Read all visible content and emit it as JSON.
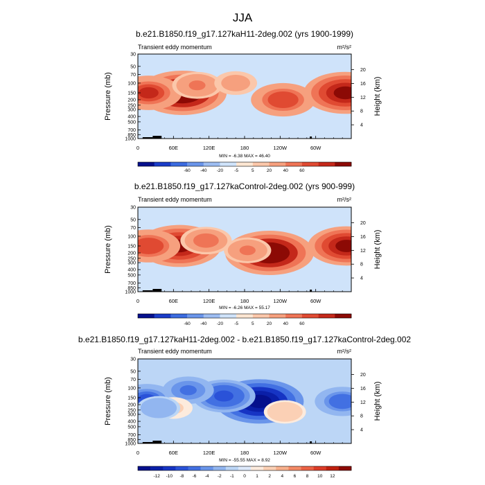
{
  "figure_title": "JJA",
  "chart_data": [
    {
      "type": "heatmap",
      "title": "b.e21.B1850.f19_g17.127kaH11-2deg.002 (yrs 1900-1999)",
      "subtitle": "Transient eddy momentum",
      "units": "m²/s²",
      "xlabel": "",
      "ylabel": "Pressure (mb)",
      "ylabel_right": "Height (km)",
      "x_ticks": [
        "0",
        "60E",
        "120E",
        "180",
        "120W",
        "60W"
      ],
      "y_ticks": [
        "30",
        "50",
        "70",
        "100",
        "150",
        "200",
        "250",
        "300",
        "400",
        "500",
        "700",
        "850",
        "1000"
      ],
      "height_ticks": [
        "20",
        "16",
        "12",
        "8",
        "4"
      ],
      "stats": "MIN = -6.38  MAX = 46.40",
      "colorbar_labels": [
        "-60",
        "-40",
        "-20",
        "-5",
        "5",
        "20",
        "40",
        "60"
      ],
      "colorbar_colors": [
        "#05108c",
        "#1a3cc8",
        "#3b6be0",
        "#6a95ea",
        "#9dbdf2",
        "#cfe3fa",
        "#fde6d2",
        "#fbc7aa",
        "#f6a07e",
        "#ef7456",
        "#e04a32",
        "#c4281a",
        "#8c0a05"
      ],
      "blobs": [
        {
          "lon": 75,
          "p": 150,
          "value": 46.4
        },
        {
          "lon": 18,
          "p": 150,
          "value": 28
        },
        {
          "lon": 100,
          "p": 110,
          "value": 14
        },
        {
          "lon": 245,
          "p": 200,
          "value": 26
        },
        {
          "lon": 350,
          "p": 150,
          "value": 42
        },
        {
          "lon": 165,
          "p": 100,
          "value": 8
        }
      ]
    },
    {
      "type": "heatmap",
      "title": "b.e21.B1850.f19_g17.127kaControl-2deg.002 (yrs 900-999)",
      "subtitle": "Transient eddy momentum",
      "units": "m²/s²",
      "xlabel": "",
      "ylabel": "Pressure (mb)",
      "ylabel_right": "Height (km)",
      "x_ticks": [
        "0",
        "60E",
        "120E",
        "180",
        "120W",
        "60W"
      ],
      "y_ticks": [
        "30",
        "50",
        "70",
        "100",
        "150",
        "200",
        "250",
        "300",
        "400",
        "500",
        "700",
        "850",
        "1000"
      ],
      "height_ticks": [
        "20",
        "16",
        "12",
        "8",
        "4"
      ],
      "stats": "MIN = -6.26  MAX = 55.17",
      "colorbar_labels": [
        "-60",
        "-40",
        "-20",
        "-5",
        "5",
        "20",
        "40",
        "60"
      ],
      "colorbar_colors": [
        "#05108c",
        "#1a3cc8",
        "#3b6be0",
        "#6a95ea",
        "#9dbdf2",
        "#cfe3fa",
        "#fde6d2",
        "#fbc7aa",
        "#f6a07e",
        "#ef7456",
        "#e04a32",
        "#c4281a",
        "#8c0a05"
      ],
      "blobs": [
        {
          "lon": 70,
          "p": 150,
          "value": 50
        },
        {
          "lon": 18,
          "p": 150,
          "value": 30
        },
        {
          "lon": 115,
          "p": 120,
          "value": 18
        },
        {
          "lon": 222,
          "p": 200,
          "value": 55.17
        },
        {
          "lon": 185,
          "p": 180,
          "value": 14
        },
        {
          "lon": 352,
          "p": 150,
          "value": 44
        }
      ]
    },
    {
      "type": "heatmap",
      "title": "b.e21.B1850.f19_g17.127kaH11-2deg.002 - b.e21.B1850.f19_g17.127kaControl-2deg.002",
      "subtitle": "Transient eddy momentum",
      "units": "m²/s²",
      "xlabel": "",
      "ylabel": "Pressure (mb)",
      "ylabel_right": "Height (km)",
      "x_ticks": [
        "0",
        "60E",
        "120E",
        "180",
        "120W",
        "60W"
      ],
      "y_ticks": [
        "30",
        "50",
        "70",
        "100",
        "150",
        "200",
        "250",
        "300",
        "400",
        "500",
        "700",
        "850",
        "1000"
      ],
      "height_ticks": [
        "20",
        "16",
        "12",
        "8",
        "4"
      ],
      "stats": "MIN = -55.55  MAX =  8.92",
      "colorbar_labels": [
        "-12",
        "-10",
        "-8",
        "-6",
        "-4",
        "-2",
        "-1",
        "0",
        "1",
        "2",
        "4",
        "6",
        "8",
        "10",
        "12"
      ],
      "colorbar_colors": [
        "#05108c",
        "#0a1fa8",
        "#1634c4",
        "#2a52d8",
        "#4270e2",
        "#6a95ea",
        "#92b6f0",
        "#bcd6f6",
        "#dde9fb",
        "#fdebdd",
        "#fbd0b5",
        "#f8b08c",
        "#f48a66",
        "#ec6245",
        "#dc3c28",
        "#c0200f",
        "#8c0a05"
      ],
      "blobs": [
        {
          "lon": 205,
          "p": 175,
          "value": -55.55
        },
        {
          "lon": 145,
          "p": 140,
          "value": -30
        },
        {
          "lon": 15,
          "p": 160,
          "value": -25
        },
        {
          "lon": 85,
          "p": 110,
          "value": -18
        },
        {
          "lon": 345,
          "p": 175,
          "value": -22
        },
        {
          "lon": 248,
          "p": 270,
          "value": 8.92
        },
        {
          "lon": 60,
          "p": 230,
          "value": 5
        },
        {
          "lon": 35,
          "p": 230,
          "value": -10
        }
      ]
    }
  ]
}
